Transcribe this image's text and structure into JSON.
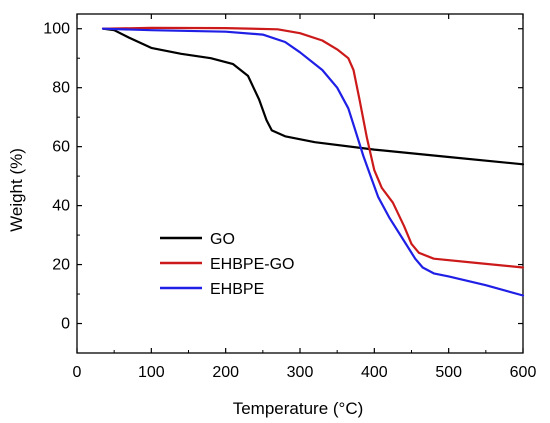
{
  "chart_data": {
    "type": "line",
    "title": "",
    "xlabel": "Temperature (°C)",
    "ylabel": "Weight (%)",
    "xlim": [
      0,
      600
    ],
    "ylim": [
      -10,
      105
    ],
    "xticks": [
      0,
      100,
      200,
      300,
      400,
      500,
      600
    ],
    "yticks": [
      0,
      20,
      40,
      60,
      80,
      100
    ],
    "grid": false,
    "legend_position": "lower-left",
    "series": [
      {
        "name": "GO",
        "color": "#000000",
        "points": [
          [
            35,
            100
          ],
          [
            50,
            99.5
          ],
          [
            70,
            97
          ],
          [
            100,
            93.5
          ],
          [
            140,
            91.5
          ],
          [
            180,
            90
          ],
          [
            210,
            88
          ],
          [
            230,
            84
          ],
          [
            245,
            76
          ],
          [
            255,
            69
          ],
          [
            262,
            65.5
          ],
          [
            280,
            63.5
          ],
          [
            320,
            61.5
          ],
          [
            400,
            59
          ],
          [
            500,
            56.5
          ],
          [
            600,
            54
          ]
        ]
      },
      {
        "name": "EHBPE-GO",
        "color": "#cc1a1a",
        "points": [
          [
            35,
            100
          ],
          [
            100,
            100.3
          ],
          [
            200,
            100.2
          ],
          [
            270,
            99.8
          ],
          [
            300,
            98.5
          ],
          [
            330,
            96
          ],
          [
            350,
            93
          ],
          [
            365,
            90
          ],
          [
            372,
            86
          ],
          [
            380,
            76
          ],
          [
            390,
            63
          ],
          [
            400,
            52
          ],
          [
            410,
            46
          ],
          [
            425,
            41
          ],
          [
            440,
            33
          ],
          [
            450,
            27
          ],
          [
            460,
            24
          ],
          [
            480,
            22
          ],
          [
            540,
            20.5
          ],
          [
            600,
            19
          ]
        ]
      },
      {
        "name": "EHBPE",
        "color": "#1f1fe6",
        "points": [
          [
            35,
            100
          ],
          [
            100,
            99.5
          ],
          [
            200,
            99
          ],
          [
            250,
            98
          ],
          [
            280,
            95.5
          ],
          [
            300,
            92
          ],
          [
            330,
            86
          ],
          [
            350,
            80
          ],
          [
            365,
            73
          ],
          [
            375,
            65
          ],
          [
            385,
            57
          ],
          [
            395,
            50
          ],
          [
            405,
            43
          ],
          [
            420,
            36
          ],
          [
            440,
            28
          ],
          [
            455,
            22
          ],
          [
            465,
            19
          ],
          [
            480,
            17
          ],
          [
            500,
            16
          ],
          [
            550,
            13
          ],
          [
            600,
            9.5
          ]
        ]
      }
    ],
    "legend_order": [
      "GO",
      "EHBPE-GO",
      "EHBPE"
    ]
  }
}
